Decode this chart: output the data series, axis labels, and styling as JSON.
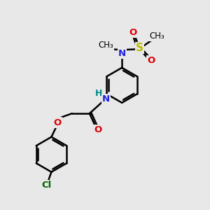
{
  "background_color": "#e8e8e8",
  "bond_color": "#000000",
  "bond_width": 1.8,
  "atom_colors": {
    "C": "#000000",
    "N_blue": "#2020dd",
    "O_red": "#dd0000",
    "S_yellow": "#bbbb00",
    "Cl_green": "#006600",
    "H_teal": "#008888"
  },
  "font_size": 9.5,
  "fig_width": 3.0,
  "fig_height": 3.0,
  "dpi": 100,
  "xlim": [
    0,
    10
  ],
  "ylim": [
    0,
    10
  ]
}
